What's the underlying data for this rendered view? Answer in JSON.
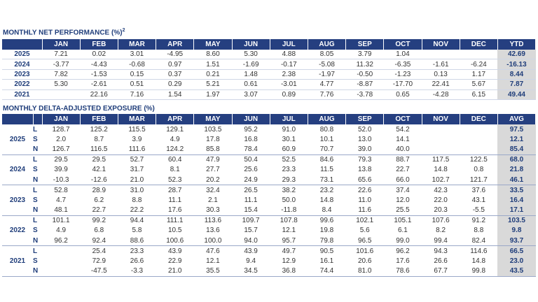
{
  "performance": {
    "title": "MONTHLY NET PERFORMANCE (%)",
    "title_sup": "2",
    "months": [
      "JAN",
      "FEB",
      "MAR",
      "APR",
      "MAY",
      "JUN",
      "JUL",
      "AUG",
      "SEP",
      "OCT",
      "NOV",
      "DEC"
    ],
    "total_header": "YTD",
    "rows": [
      {
        "year": "2025",
        "values": [
          "7.21",
          "0.02",
          "3.01",
          "-4.95",
          "8.60",
          "5.30",
          "4.88",
          "8.05",
          "3.79",
          "1.04",
          null,
          null
        ],
        "total": "42.69"
      },
      {
        "year": "2024",
        "values": [
          "-3.77",
          "-4.43",
          "-0.68",
          "0.97",
          "1.51",
          "-1.69",
          "-0.17",
          "-5.08",
          "11.32",
          "-6.35",
          "-1.61",
          "-6.24"
        ],
        "total": "-16.13"
      },
      {
        "year": "2023",
        "values": [
          "7.82",
          "-1.53",
          "0.15",
          "0.37",
          "0.21",
          "1.48",
          "2.38",
          "-1.97",
          "-0.50",
          "-1.23",
          "0.13",
          "1.17"
        ],
        "total": "8.44"
      },
      {
        "year": "2022",
        "values": [
          "5.30",
          "-2.61",
          "0.51",
          "0.29",
          "5.21",
          "0.61",
          "-3.01",
          "4.77",
          "-8.87",
          "-17.70",
          "22.41",
          "5.67"
        ],
        "total": "7.87"
      },
      {
        "year": "2021",
        "values": [
          null,
          "22.16",
          "7.16",
          "1.54",
          "1.97",
          "3.07",
          "0.89",
          "7.76",
          "-3.78",
          "0.65",
          "-4.28",
          "6.15"
        ],
        "total": "49.44"
      }
    ]
  },
  "exposure": {
    "title": "MONTHLY DELTA-ADJUSTED EXPOSURE (%)",
    "months": [
      "JAN",
      "FEB",
      "MAR",
      "APR",
      "MAY",
      "JUN",
      "JUL",
      "AUG",
      "SEP",
      "OCT",
      "NOV",
      "DEC"
    ],
    "total_header": "AVG",
    "groups": [
      {
        "year": "2025",
        "rows": [
          {
            "label": "L",
            "values": [
              "128.7",
              "125.2",
              "115.5",
              "129.1",
              "103.5",
              "95.2",
              "91.0",
              "80.8",
              "52.0",
              "54.2",
              null,
              null
            ],
            "total": "97.5"
          },
          {
            "label": "S",
            "values": [
              "2.0",
              "8.7",
              "3.9",
              "4.9",
              "17.8",
              "16.8",
              "30.1",
              "10.1",
              "13.0",
              "14.1",
              null,
              null
            ],
            "total": "12.1"
          },
          {
            "label": "N",
            "values": [
              "126.7",
              "116.5",
              "111.6",
              "124.2",
              "85.8",
              "78.4",
              "60.9",
              "70.7",
              "39.0",
              "40.0",
              null,
              null
            ],
            "total": "85.4"
          }
        ]
      },
      {
        "year": "2024",
        "rows": [
          {
            "label": "L",
            "values": [
              "29.5",
              "29.5",
              "52.7",
              "60.4",
              "47.9",
              "50.4",
              "52.5",
              "84.6",
              "79.3",
              "88.7",
              "117.5",
              "122.5"
            ],
            "total": "68.0"
          },
          {
            "label": "S",
            "values": [
              "39.9",
              "42.1",
              "31.7",
              "8.1",
              "27.7",
              "25.6",
              "23.3",
              "11.5",
              "13.8",
              "22.7",
              "14.8",
              "0.8"
            ],
            "total": "21.8"
          },
          {
            "label": "N",
            "values": [
              "-10.3",
              "-12.6",
              "21.0",
              "52.3",
              "20.2",
              "24.9",
              "29.3",
              "73.1",
              "65.6",
              "66.0",
              "102.7",
              "121.7"
            ],
            "total": "46.1"
          }
        ]
      },
      {
        "year": "2023",
        "rows": [
          {
            "label": "L",
            "values": [
              "52.8",
              "28.9",
              "31.0",
              "28.7",
              "32.4",
              "26.5",
              "38.2",
              "23.2",
              "22.6",
              "37.4",
              "42.3",
              "37.6"
            ],
            "total": "33.5"
          },
          {
            "label": "S",
            "values": [
              "4.7",
              "6.2",
              "8.8",
              "11.1",
              "2.1",
              "11.1",
              "50.0",
              "14.8",
              "11.0",
              "12.0",
              "22.0",
              "43.1"
            ],
            "total": "16.4"
          },
          {
            "label": "N",
            "values": [
              "48.1",
              "22.7",
              "22.2",
              "17.6",
              "30.3",
              "15.4",
              "-11.8",
              "8.4",
              "11.6",
              "25.5",
              "20.3",
              "-5.5"
            ],
            "total": "17.1"
          }
        ]
      },
      {
        "year": "2022",
        "rows": [
          {
            "label": "L",
            "values": [
              "101.1",
              "99.2",
              "94.4",
              "111.1",
              "113.6",
              "109.7",
              "107.8",
              "99.6",
              "102.1",
              "105.1",
              "107.6",
              "91.2"
            ],
            "total": "103.5"
          },
          {
            "label": "S",
            "values": [
              "4.9",
              "6.8",
              "5.8",
              "10.5",
              "13.6",
              "15.7",
              "12.1",
              "19.8",
              "5.6",
              "6.1",
              "8.2",
              "8.8"
            ],
            "total": "9.8"
          },
          {
            "label": "N",
            "values": [
              "96.2",
              "92.4",
              "88.6",
              "100.6",
              "100.0",
              "94.0",
              "95.7",
              "79.8",
              "96.5",
              "99.0",
              "99.4",
              "82.4"
            ],
            "total": "93.7"
          }
        ]
      },
      {
        "year": "2021",
        "rows": [
          {
            "label": "L",
            "values": [
              null,
              "25.4",
              "23.3",
              "43.9",
              "47.6",
              "43.9",
              "49.7",
              "90.5",
              "101.6",
              "96.2",
              "94.3",
              "114.6"
            ],
            "total": "66.5"
          },
          {
            "label": "S",
            "values": [
              null,
              "72.9",
              "26.6",
              "22.9",
              "12.1",
              "9.4",
              "12.9",
              "16.1",
              "20.6",
              "17.6",
              "26.6",
              "14.8"
            ],
            "total": "23.0"
          },
          {
            "label": "N",
            "values": [
              null,
              "-47.5",
              "-3.3",
              "21.0",
              "35.5",
              "34.5",
              "36.8",
              "74.4",
              "81.0",
              "78.6",
              "67.7",
              "99.8"
            ],
            "total": "43.5"
          }
        ]
      }
    ]
  }
}
